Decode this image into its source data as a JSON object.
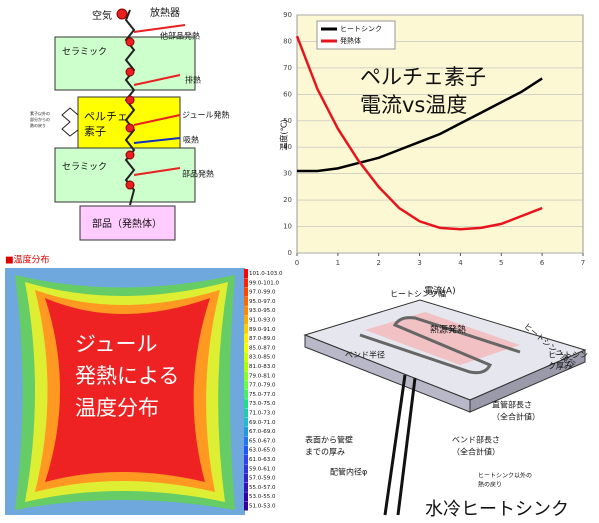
{
  "circuit": {
    "air": "空気",
    "radiator": "放熱器",
    "other_heat": "他部品発熱",
    "ceramic_top": "セラミック",
    "exhaust": "排熱",
    "peltier": [
      "ペルチェ",
      "素子"
    ],
    "joule": "ジュール発熱",
    "absorb": "吸熱",
    "ceramic_bottom": "セラミック",
    "part_heat": "部品発熱",
    "part": "部品（発熱体）",
    "return": [
      "素子以外の",
      "部分からの",
      "熱の戻り"
    ]
  },
  "chart_data": {
    "type": "line",
    "overlay": [
      "ペルチェ素子",
      "電流vs温度"
    ],
    "x_label": "電流(A)",
    "y_label": "温度(℃)",
    "x": [
      0,
      0.5,
      1,
      1.5,
      2,
      2.5,
      3,
      3.5,
      4,
      4.5,
      5,
      5.5,
      6
    ],
    "series": [
      {
        "name": "ヒートシンク",
        "color": "#000000",
        "values": [
          31,
          31,
          32,
          34,
          36,
          39,
          42,
          45,
          49,
          53,
          57,
          61,
          66
        ]
      },
      {
        "name": "発熱体",
        "color": "#e8141c",
        "values": [
          82,
          62,
          47,
          35,
          25,
          17,
          12,
          9.5,
          9,
          9.5,
          11,
          14,
          17
        ]
      }
    ],
    "xlim": [
      0,
      7
    ],
    "ylim": [
      0,
      90
    ],
    "xticks": [
      0,
      1,
      2,
      3,
      4,
      5,
      6,
      7
    ],
    "yticks": [
      0,
      10,
      20,
      30,
      40,
      50,
      60,
      70,
      80,
      90
    ],
    "grid": true,
    "legend": "top-left"
  },
  "heatmap": {
    "title": "■温度分布",
    "overlay": [
      "ジュール",
      "発熱による",
      "温度分布"
    ],
    "scale": [
      "101.0-103.0",
      "99.0-101.0",
      "97.0-99.0",
      "95.0-97.0",
      "93.0-95.0",
      "91.0-93.0",
      "89.0-91.0",
      "87.0-89.0",
      "85.0-87.0",
      "83.0-85.0",
      "81.0-83.0",
      "79.0-81.0",
      "77.0-79.0",
      "75.0-77.0",
      "73.0-75.0",
      "71.0-73.0",
      "69.0-71.0",
      "67.0-69.0",
      "65.0-67.0",
      "63.0-65.0",
      "61.0-63.0",
      "59.0-61.0",
      "57.0-59.0",
      "55.0-57.0",
      "53.0-55.0",
      "51.0-53.0"
    ]
  },
  "heatsink": {
    "width": "ヒートシンク幅",
    "depth": "ヒートシンク奥行",
    "thickness": [
      "ヒートシン",
      "ク厚み"
    ],
    "source": "熱源発熱",
    "bend_radius": "ベンド半径",
    "straight": [
      "直管部長さ",
      "（全合計値）"
    ],
    "bend_len": [
      "ベンド部長さ",
      "（全合計値）"
    ],
    "wall": [
      "表面から管壁",
      "までの厚み"
    ],
    "pipe": "配管内径φ",
    "other": [
      "ヒートシンク以外の",
      "熱の戻り"
    ],
    "caption": "水冷ヒートシンク"
  }
}
